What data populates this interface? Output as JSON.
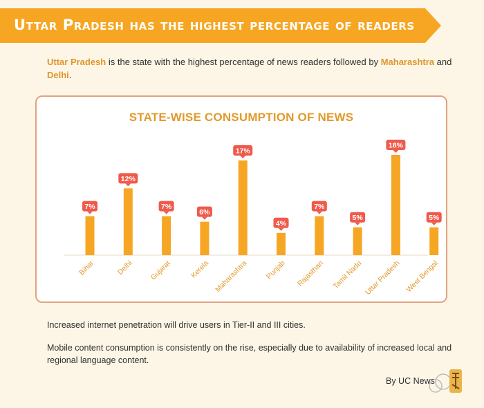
{
  "header": {
    "title": "Uttar Pradesh has the highest percentage of readers"
  },
  "intro": {
    "part1": "Uttar Pradesh",
    "part2": " is the state with the highest percentage of news readers followed by ",
    "part3": "Maharashtra",
    "part4": " and ",
    "part5": "Delhi",
    "part6": "."
  },
  "chart_data": {
    "type": "bar",
    "title": "STATE-WISE CONSUMPTION OF NEWS",
    "categories": [
      "Bihar",
      "Delhi",
      "Gujarat",
      "Kerela",
      "Maharashtra",
      "Punjab",
      "Rajasthan",
      "Tamil Nadu",
      "Uttar Pradesh",
      "West Bengal"
    ],
    "values": [
      7,
      12,
      7,
      6,
      17,
      4,
      7,
      5,
      18,
      5
    ],
    "data_labels": [
      "7%",
      "12%",
      "7%",
      "6%",
      "17%",
      "4%",
      "7%",
      "5%",
      "18%",
      "5%"
    ],
    "ylim": [
      0,
      18
    ],
    "grid": false,
    "colors": {
      "bar": "#f6a623",
      "label_bg": "#ef5a4a",
      "title": "#e29a2c",
      "axis_text": "#e29a2c"
    }
  },
  "notes": [
    "Increased internet penetration will drive users in Tier-II and III cities.",
    "Mobile content consumption is consistently on the rise, especially due to availability of increased local and regional language content."
  ],
  "footer": {
    "byline": "By UC News"
  },
  "colors": {
    "banner": "#f6a623",
    "background": "#fdf6e6",
    "card_border": "#e1a27e",
    "highlight": "#e0952d"
  }
}
